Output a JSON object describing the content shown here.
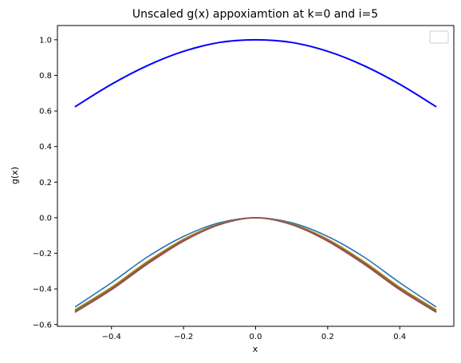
{
  "chart_data": {
    "type": "line",
    "title": "Unscaled g(x) appoxiamtion at k=0 and i=5",
    "xlabel": "x",
    "ylabel": "g(x)",
    "xlim": [
      -0.55,
      0.55
    ],
    "ylim": [
      -0.61,
      1.08
    ],
    "xticks": [
      -0.4,
      -0.2,
      0.0,
      0.2,
      0.4
    ],
    "xtick_labels": [
      "−0.4",
      "−0.2",
      "0.0",
      "0.2",
      "0.4"
    ],
    "yticks": [
      -0.6,
      -0.4,
      -0.2,
      0.0,
      0.2,
      0.4,
      0.6,
      0.8,
      1.0
    ],
    "ytick_labels": [
      "−0.6",
      "−0.4",
      "−0.2",
      "0.0",
      "0.2",
      "0.4",
      "0.6",
      "0.8",
      "1.0"
    ],
    "grid": false,
    "legend": "top-right",
    "legend_entries": [],
    "x": [
      -0.5,
      -0.4,
      -0.3,
      -0.2,
      -0.1,
      0.0,
      0.1,
      0.2,
      0.3,
      0.4,
      0.5
    ],
    "series": [
      {
        "color": "#0000ff",
        "values": [
          0.625,
          0.75,
          0.855,
          0.935,
          0.985,
          1.0,
          0.985,
          0.935,
          0.855,
          0.75,
          0.625
        ]
      },
      {
        "color": "#1f77b4",
        "values": [
          -0.5,
          -0.365,
          -0.22,
          -0.105,
          -0.028,
          0.0,
          -0.028,
          -0.105,
          -0.22,
          -0.365,
          -0.5
        ]
      },
      {
        "color": "#ff7f0e",
        "values": [
          -0.515,
          -0.39,
          -0.245,
          -0.12,
          -0.034,
          0.0,
          -0.034,
          -0.12,
          -0.245,
          -0.39,
          -0.515
        ]
      },
      {
        "color": "#2ca02c",
        "values": [
          -0.52,
          -0.395,
          -0.25,
          -0.125,
          -0.036,
          0.0,
          -0.036,
          -0.125,
          -0.25,
          -0.395,
          -0.52
        ]
      },
      {
        "color": "#d62728",
        "values": [
          -0.525,
          -0.4,
          -0.255,
          -0.128,
          -0.037,
          0.0,
          -0.037,
          -0.128,
          -0.255,
          -0.4,
          -0.525
        ]
      },
      {
        "color": "#9467bd",
        "values": [
          -0.528,
          -0.403,
          -0.258,
          -0.13,
          -0.038,
          0.0,
          -0.038,
          -0.13,
          -0.258,
          -0.403,
          -0.528
        ]
      },
      {
        "color": "#8c564b",
        "values": [
          -0.53,
          -0.405,
          -0.26,
          -0.132,
          -0.039,
          0.0,
          -0.039,
          -0.132,
          -0.26,
          -0.405,
          -0.53
        ]
      }
    ]
  }
}
